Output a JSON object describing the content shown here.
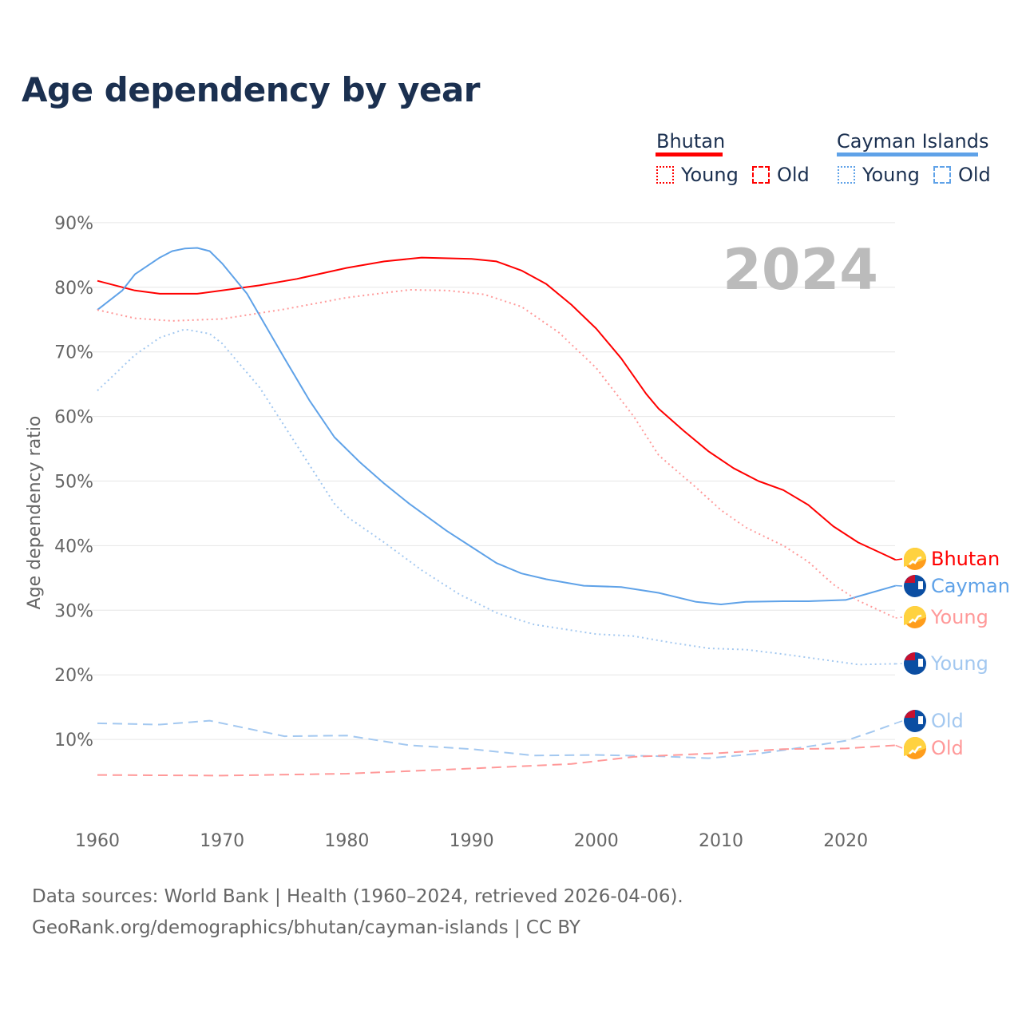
{
  "title": "Age dependency by year",
  "legend": {
    "groups": [
      {
        "name": "Bhutan",
        "color": "#ff0000",
        "young": "Young",
        "old": "Old"
      },
      {
        "name": "Cayman Islands",
        "color": "#5fa2e8",
        "young": "Young",
        "old": "Old"
      }
    ]
  },
  "source_line1": "Data sources: World Bank | Health (1960–2024, retrieved 2026-04-06).",
  "source_line2": "GeoRank.org/demographics/bhutan/cayman-islands | CC BY",
  "chart_data": {
    "type": "line",
    "title": "Age dependency by year",
    "ylabel": "Age dependency ratio",
    "year_label": "2024",
    "xlim": [
      1960,
      2024
    ],
    "ylim": [
      0,
      90
    ],
    "xticks": [
      1960,
      1970,
      1980,
      1990,
      2000,
      2010,
      2020
    ],
    "yticks": [
      10,
      20,
      30,
      40,
      50,
      60,
      70,
      80,
      90
    ],
    "ytick_labels": [
      "10%",
      "20%",
      "30%",
      "40%",
      "50%",
      "60%",
      "70%",
      "80%",
      "90%"
    ],
    "grid": true,
    "series": [
      {
        "name": "Bhutan",
        "end_label": "Bhutan",
        "flag": "bhutan",
        "color": "#ff0000",
        "style": "solid",
        "x": [
          1960,
          1963,
          1965,
          1968,
          1970,
          1973,
          1976,
          1980,
          1983,
          1986,
          1990,
          1992,
          1994,
          1996,
          1998,
          2000,
          2002,
          2004,
          2005,
          2007,
          2009,
          2011,
          2013,
          2015,
          2017,
          2019,
          2021,
          2023,
          2024
        ],
        "y": [
          81,
          79.5,
          79,
          79,
          79.5,
          80.3,
          81.3,
          83,
          84,
          84.6,
          84.4,
          84,
          82.6,
          80.5,
          77.3,
          73.6,
          69,
          63.5,
          61.2,
          57.8,
          54.6,
          52,
          50,
          48.6,
          46.3,
          43,
          40.5,
          38.7,
          37.8
        ]
      },
      {
        "name": "Cayman Islands",
        "end_label": "Cayman",
        "flag": "cayman",
        "color": "#5fa2e8",
        "style": "solid",
        "x": [
          1960,
          1962,
          1963,
          1965,
          1966,
          1967,
          1968,
          1969,
          1970,
          1972,
          1975,
          1977,
          1979,
          1981,
          1983,
          1985,
          1988,
          1990,
          1992,
          1994,
          1996,
          1999,
          2002,
          2005,
          2008,
          2010,
          2012,
          2015,
          2017,
          2020,
          2022,
          2024
        ],
        "y": [
          76.5,
          79.5,
          82,
          84.6,
          85.6,
          86,
          86.1,
          85.6,
          83.7,
          79,
          69,
          62.5,
          56.8,
          53,
          49.6,
          46.5,
          42.3,
          39.8,
          37.3,
          35.7,
          34.8,
          33.8,
          33.6,
          32.7,
          31.3,
          30.9,
          31.3,
          31.4,
          31.4,
          31.6,
          32.7,
          33.8
        ]
      },
      {
        "name": "Bhutan Young",
        "end_label": "Young",
        "flag": "bhutan",
        "color": "#ff9999",
        "style": "dotted",
        "x": [
          1960,
          1963,
          1966,
          1970,
          1975,
          1980,
          1985,
          1988,
          1991,
          1994,
          1997,
          2000,
          2003,
          2005,
          2008,
          2010,
          2012,
          2015,
          2017,
          2019,
          2021,
          2024
        ],
        "y": [
          76.5,
          75.2,
          74.8,
          75.1,
          76.6,
          78.4,
          79.6,
          79.5,
          78.9,
          77,
          73,
          67.5,
          60,
          54,
          49,
          45.5,
          42.8,
          40,
          37.5,
          34,
          31.5,
          28.8
        ]
      },
      {
        "name": "Cayman Islands Young",
        "end_label": "Young",
        "flag": "cayman",
        "color": "#a3c8f0",
        "style": "dotted",
        "x": [
          1960,
          1963,
          1965,
          1967,
          1969,
          1970,
          1973,
          1976,
          1979,
          1980,
          1983,
          1986,
          1989,
          1992,
          1995,
          2000,
          2003,
          2006,
          2009,
          2012,
          2015,
          2018,
          2021,
          2024
        ],
        "y": [
          64,
          69.5,
          72.2,
          73.5,
          72.8,
          71.3,
          64.5,
          55.5,
          46.5,
          44.5,
          40.5,
          36.2,
          32.5,
          29.6,
          27.8,
          26.3,
          26,
          25,
          24.1,
          23.9,
          23.2,
          22.4,
          21.6,
          21.7
        ]
      },
      {
        "name": "Cayman Islands Old",
        "end_label": "Old",
        "flag": "cayman",
        "color": "#a3c8f0",
        "style": "dashed",
        "x": [
          1960,
          1965,
          1969,
          1975,
          1980,
          1985,
          1990,
          1995,
          2000,
          2005,
          2009,
          2013,
          2017,
          2020,
          2022,
          2024
        ],
        "y": [
          12.5,
          12.3,
          12.9,
          10.5,
          10.6,
          9.1,
          8.5,
          7.5,
          7.6,
          7.4,
          7.1,
          7.8,
          8.9,
          9.8,
          11.1,
          12.5
        ]
      },
      {
        "name": "Bhutan Old",
        "end_label": "Old",
        "flag": "bhutan",
        "color": "#ff9999",
        "style": "dashed",
        "x": [
          1960,
          1970,
          1980,
          1990,
          1998,
          2003,
          2010,
          2015,
          2020,
          2024
        ],
        "y": [
          4.5,
          4.4,
          4.7,
          5.5,
          6.2,
          7.3,
          7.9,
          8.5,
          8.6,
          9.1
        ]
      }
    ]
  }
}
